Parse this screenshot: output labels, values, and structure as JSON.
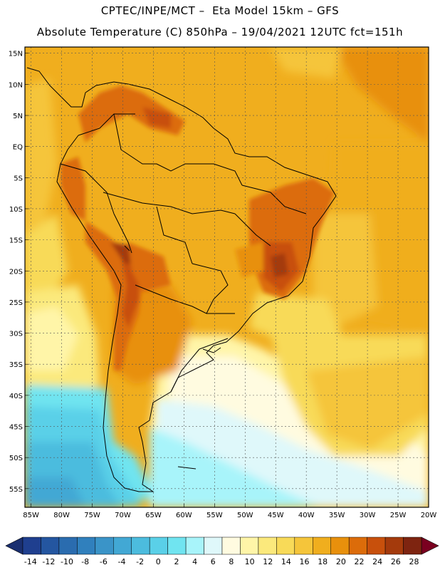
{
  "title_line1": "CPTEC/INPE/MCT –  Eta Model 15km – GFS",
  "title_line2": "Absolute Temperature (C) 850hPa – 19/04/2021 12UTC fct=151h",
  "lat_labels": [
    "15N",
    "10N",
    "5N",
    "EQ",
    "5S",
    "10S",
    "15S",
    "20S",
    "25S",
    "30S",
    "35S",
    "40S",
    "45S",
    "50S",
    "55S"
  ],
  "lat_values": [
    15,
    10,
    5,
    0,
    -5,
    -10,
    -15,
    -20,
    -25,
    -30,
    -35,
    -40,
    -45,
    -50,
    -55
  ],
  "lon_labels": [
    "85W",
    "80W",
    "75W",
    "70W",
    "65W",
    "60W",
    "55W",
    "50W",
    "45W",
    "40W",
    "35W",
    "30W",
    "25W",
    "20W"
  ],
  "lon_values": [
    -85,
    -80,
    -75,
    -70,
    -65,
    -60,
    -55,
    -50,
    -45,
    -40,
    -35,
    -30,
    -25,
    -20
  ],
  "map_extent": {
    "lon": [
      -86,
      -20
    ],
    "lat": [
      -58,
      16
    ]
  },
  "colorbar": {
    "labels": [
      "-14",
      "-12",
      "-10",
      "-8",
      "-6",
      "-4",
      "-2",
      "0",
      "2",
      "4",
      "6",
      "8",
      "10",
      "12",
      "14",
      "16",
      "18",
      "20",
      "22",
      "24",
      "26",
      "28"
    ],
    "colors": [
      "#1f3f8f",
      "#2456a0",
      "#2a6caf",
      "#3080bd",
      "#3a94c8",
      "#42a8d4",
      "#4cbcde",
      "#5ad0e8",
      "#70e4f0",
      "#a8f4fa",
      "#dff8fa",
      "#fffbe0",
      "#fff5a8",
      "#fbe97c",
      "#f8da58",
      "#f5c53a",
      "#f0ae1e",
      "#e8900c",
      "#dc6c0a",
      "#c8500c",
      "#a43a0c",
      "#7e2410"
    ],
    "under_color": "#1a2f70",
    "over_color": "#7a0020"
  }
}
